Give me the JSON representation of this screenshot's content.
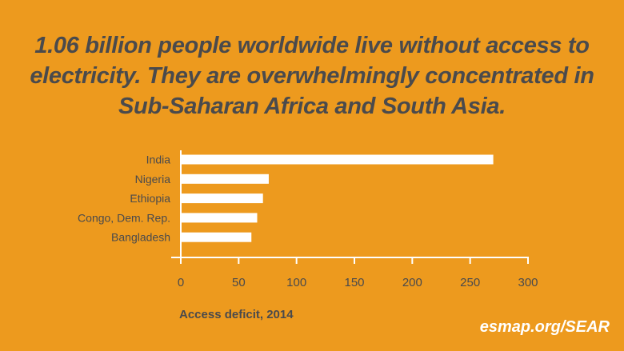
{
  "headline": "1.06 billion people worldwide live without access to electricity. They are overwhelmingly concentrated in Sub-Saharan Africa and South Asia.",
  "footer": {
    "link_text": "esmap.org/SEAR"
  },
  "colors": {
    "background": "#ED9A1E",
    "bar": "#FFFFFF",
    "text_dark": "#4A4A4C",
    "axis": "#FFFFFF"
  },
  "chart_data": {
    "type": "bar",
    "orientation": "horizontal",
    "title": "",
    "categories": [
      "India",
      "Nigeria",
      "Ethiopia",
      "Congo, Dem. Rep.",
      "Bangladesh"
    ],
    "values": [
      270,
      76,
      71,
      66,
      61
    ],
    "xlabel": "Access deficit, 2014",
    "ylabel": "",
    "xlim": [
      0,
      300
    ],
    "xticks": [
      0,
      50,
      100,
      150,
      200,
      250,
      300
    ],
    "grid": false,
    "legend": "none"
  }
}
